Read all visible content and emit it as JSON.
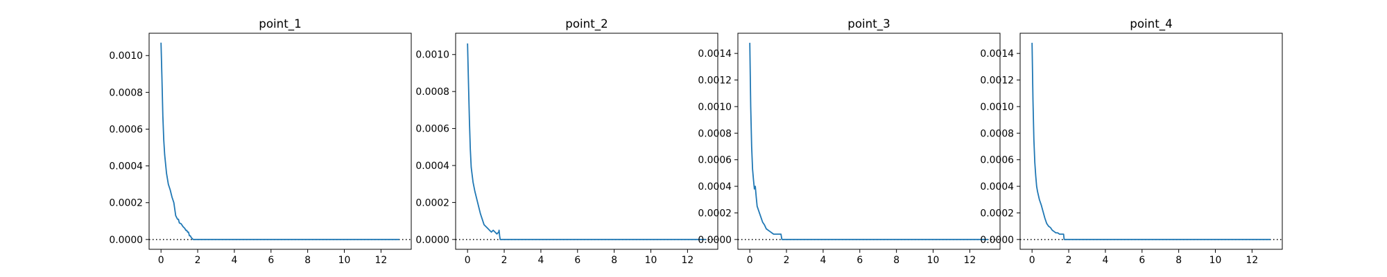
{
  "chart_data": [
    {
      "type": "line",
      "title": "point_1",
      "xlabel": "",
      "ylabel": "",
      "xlim": [
        -0.65,
        13.65
      ],
      "ylim": [
        -5.34e-05,
        0.0011214
      ],
      "xticks": [
        0,
        2,
        4,
        6,
        8,
        10,
        12
      ],
      "yticks": [
        0.0,
        0.0002,
        0.0004,
        0.0006,
        0.0008,
        0.001
      ],
      "ytick_decimals": 4,
      "reference_line": {
        "y": 0,
        "style": "dotted",
        "color": "#000000"
      },
      "series": [
        {
          "color": "#1f77b4",
          "x": [
            0,
            0.05,
            0.1,
            0.15,
            0.2,
            0.25,
            0.3,
            0.4,
            0.5,
            0.6,
            0.7,
            0.8,
            0.9,
            0.95,
            1.0,
            1.1,
            1.2,
            1.3,
            1.35,
            1.4,
            1.45,
            1.5,
            1.55,
            1.6,
            1.65,
            1.75,
            2,
            4,
            6,
            8,
            10,
            12,
            13
          ],
          "y": [
            0.00107,
            0.00088,
            0.00067,
            0.00054,
            0.00046,
            0.00041,
            0.00036,
            0.0003,
            0.00027,
            0.00023,
            0.0002,
            0.00013,
            0.00011,
            0.00011,
            9e-05,
            8.5e-05,
            7e-05,
            6e-05,
            5e-05,
            5e-05,
            4e-05,
            4e-05,
            2e-05,
            2e-05,
            1e-05,
            0.0,
            0.0,
            0.0,
            0.0,
            0.0,
            0.0,
            0.0,
            0.0
          ]
        }
      ]
    },
    {
      "type": "line",
      "title": "point_2",
      "xlabel": "",
      "ylabel": "",
      "xlim": [
        -0.65,
        13.65
      ],
      "ylim": [
        -5.31e-05,
        0.0011151
      ],
      "xticks": [
        0,
        2,
        4,
        6,
        8,
        10,
        12
      ],
      "yticks": [
        0.0,
        0.0002,
        0.0004,
        0.0006,
        0.0008,
        0.001
      ],
      "ytick_decimals": 4,
      "reference_line": {
        "y": 0,
        "style": "dotted",
        "color": "#000000"
      },
      "series": [
        {
          "color": "#1f77b4",
          "x": [
            0,
            0.05,
            0.1,
            0.15,
            0.2,
            0.25,
            0.3,
            0.4,
            0.5,
            0.6,
            0.7,
            0.8,
            0.9,
            1.0,
            1.1,
            1.2,
            1.3,
            1.4,
            1.5,
            1.6,
            1.7,
            1.72,
            1.75,
            1.78,
            2,
            4,
            6,
            8,
            10,
            12,
            13
          ],
          "y": [
            0.00106,
            0.00085,
            0.00065,
            0.00049,
            0.00039,
            0.00035,
            0.00031,
            0.00026,
            0.00022,
            0.00018,
            0.00014,
            0.00011,
            8e-05,
            7e-05,
            6e-05,
            5e-05,
            4e-05,
            5e-05,
            4e-05,
            3e-05,
            4e-05,
            5e-05,
            2e-05,
            0.0,
            0.0,
            0.0,
            0.0,
            0.0,
            0.0,
            0.0,
            0.0
          ]
        }
      ]
    },
    {
      "type": "line",
      "title": "point_3",
      "xlabel": "",
      "ylabel": "",
      "xlim": [
        -0.65,
        13.65
      ],
      "ylim": [
        -7.39e-05,
        0.0015519
      ],
      "xticks": [
        0,
        2,
        4,
        6,
        8,
        10,
        12
      ],
      "yticks": [
        0.0,
        0.0002,
        0.0004,
        0.0006,
        0.0008,
        0.001,
        0.0012,
        0.0014
      ],
      "ytick_decimals": 4,
      "reference_line": {
        "y": 0,
        "style": "dotted",
        "color": "#000000"
      },
      "series": [
        {
          "color": "#1f77b4",
          "x": [
            0,
            0.05,
            0.1,
            0.15,
            0.2,
            0.25,
            0.3,
            0.35,
            0.4,
            0.5,
            0.6,
            0.7,
            0.8,
            0.9,
            1.0,
            1.1,
            1.2,
            1.3,
            1.5,
            1.7,
            1.75,
            2,
            4,
            6,
            8,
            10,
            12,
            13
          ],
          "y": [
            0.00148,
            0.001,
            0.0007,
            0.00053,
            0.00045,
            0.00038,
            0.0004,
            0.00032,
            0.00025,
            0.00021,
            0.00017,
            0.00013,
            0.00011,
            8e-05,
            7e-05,
            6e-05,
            5e-05,
            4e-05,
            4e-05,
            4e-05,
            0.0,
            0.0,
            0.0,
            0.0,
            0.0,
            0.0,
            0.0,
            0.0
          ]
        }
      ]
    },
    {
      "type": "line",
      "title": "point_4",
      "xlabel": "",
      "ylabel": "",
      "xlim": [
        -0.65,
        13.65
      ],
      "ylim": [
        -7.39e-05,
        0.0015519
      ],
      "xticks": [
        0,
        2,
        4,
        6,
        8,
        10,
        12
      ],
      "yticks": [
        0.0,
        0.0002,
        0.0004,
        0.0006,
        0.0008,
        0.001,
        0.0012,
        0.0014
      ],
      "ytick_decimals": 4,
      "reference_line": {
        "y": 0,
        "style": "dotted",
        "color": "#000000"
      },
      "series": [
        {
          "color": "#1f77b4",
          "x": [
            0,
            0.05,
            0.1,
            0.15,
            0.2,
            0.25,
            0.3,
            0.4,
            0.5,
            0.6,
            0.7,
            0.8,
            0.9,
            1.0,
            1.1,
            1.2,
            1.3,
            1.4,
            1.5,
            1.6,
            1.7,
            1.72,
            1.75,
            2,
            4,
            6,
            8,
            10,
            12,
            13
          ],
          "y": [
            0.00148,
            0.00105,
            0.00075,
            0.00058,
            0.00048,
            0.0004,
            0.00036,
            0.0003,
            0.00026,
            0.00021,
            0.00016,
            0.00012,
            0.0001,
            9e-05,
            7e-05,
            6e-05,
            5e-05,
            5e-05,
            4e-05,
            4e-05,
            4e-05,
            4e-05,
            0.0,
            0.0,
            0.0,
            0.0,
            0.0,
            0.0,
            0.0,
            0.0
          ]
        }
      ]
    }
  ]
}
